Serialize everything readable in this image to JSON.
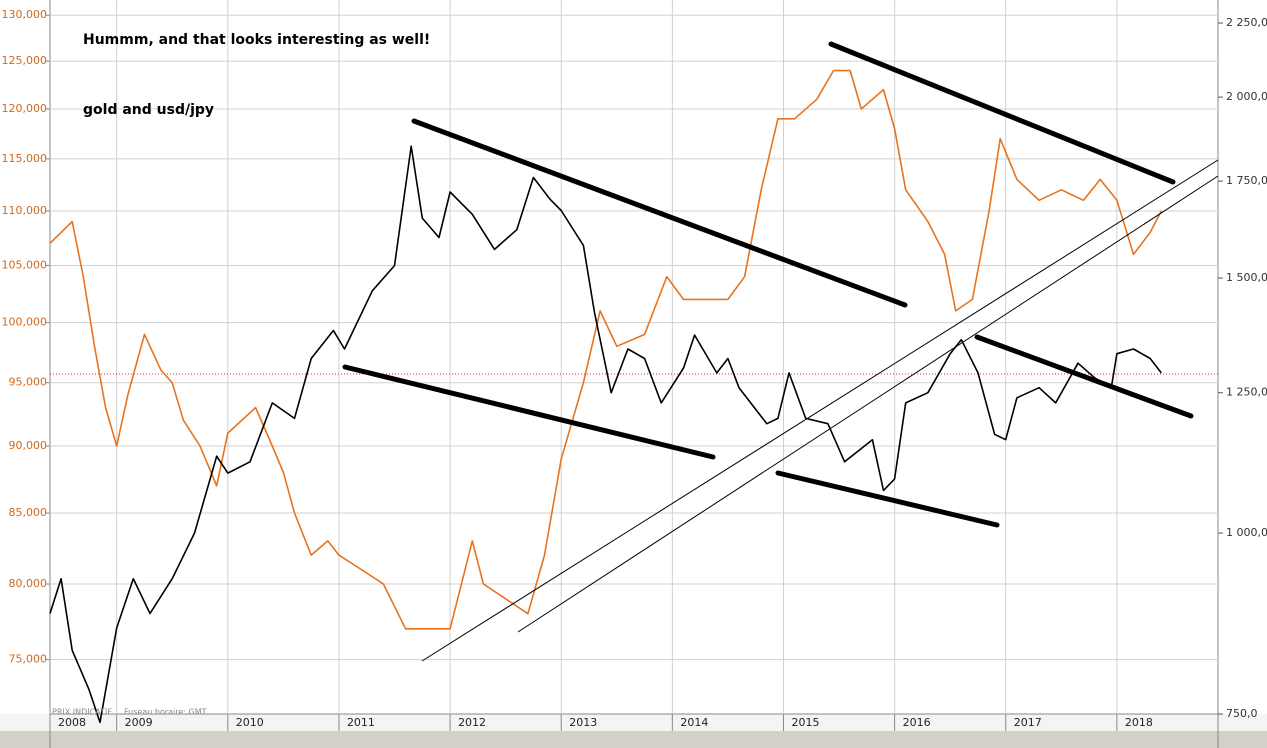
{
  "chart_data": {
    "type": "line",
    "title": "Hummm, and that looks interesting as well!",
    "subtitle": "gold and usd/jpy",
    "footer_labels": [
      "PRIX INDICATIF",
      "Fuseau horaire: GMT"
    ],
    "xlim": [
      2008.4,
      2018.91
    ],
    "xticks": [
      2008,
      2009,
      2010,
      2011,
      2012,
      2013,
      2014,
      2015,
      2016,
      2017,
      2018
    ],
    "ylim": [
      71.6,
      131.7
    ],
    "yticks": [
      {
        "value": 75,
        "label": "75,000"
      },
      {
        "value": 80,
        "label": "80,000"
      },
      {
        "value": 85,
        "label": "85,000"
      },
      {
        "value": 90,
        "label": "90,000"
      },
      {
        "value": 95,
        "label": "95,000"
      },
      {
        "value": 100,
        "label": "100,000"
      },
      {
        "value": 105,
        "label": "105,000"
      },
      {
        "value": 110,
        "label": "110,000"
      },
      {
        "value": 115,
        "label": "115,000"
      },
      {
        "value": 120,
        "label": "120,000"
      },
      {
        "value": 125,
        "label": "125,000"
      },
      {
        "value": 130,
        "label": "130,000"
      }
    ],
    "y2lim": [
      750,
      2334
    ],
    "y2ticks": [
      {
        "value": 750,
        "label": "750,0"
      },
      {
        "value": 1000,
        "label": "1 000,0"
      },
      {
        "value": 1250,
        "label": "1 250,0"
      },
      {
        "value": 1500,
        "label": "1 500,0"
      },
      {
        "value": 1750,
        "label": "1 750,0"
      },
      {
        "value": 2000,
        "label": "2 000,0"
      },
      {
        "value": 2250,
        "label": "2 250,0"
      }
    ],
    "log_scale": true,
    "grid": true,
    "series": [
      {
        "color": "#e8731e",
        "axis": "y",
        "x": [
          2008.4,
          2008.5,
          2008.6,
          2008.7,
          2008.8,
          2008.9,
          2009.0,
          2009.1,
          2009.25,
          2009.4,
          2009.5,
          2009.6,
          2009.75,
          2009.9,
          2010.0,
          2010.25,
          2010.4,
          2010.5,
          2010.6,
          2010.75,
          2010.9,
          2011.0,
          2011.2,
          2011.4,
          2011.6,
          2011.75,
          2011.9,
          2012.0,
          2012.2,
          2012.3,
          2012.5,
          2012.7,
          2012.85,
          2013.0,
          2013.2,
          2013.35,
          2013.5,
          2013.75,
          2013.95,
          2014.1,
          2014.3,
          2014.5,
          2014.65,
          2014.8,
          2014.95,
          2015.1,
          2015.3,
          2015.45,
          2015.6,
          2015.7,
          2015.9,
          2016.0,
          2016.1,
          2016.3,
          2016.45,
          2016.55,
          2016.7,
          2016.85,
          2016.95,
          2017.1,
          2017.3,
          2017.5,
          2017.7,
          2017.85,
          2018.0,
          2018.15,
          2018.3,
          2018.4
        ],
        "values": [
          107,
          108,
          109,
          104,
          98,
          93,
          90,
          94,
          99,
          96,
          95,
          92,
          90,
          87,
          91,
          93,
          90,
          88,
          85,
          82,
          83,
          82,
          81,
          80,
          77,
          77,
          77,
          77,
          83,
          80,
          79,
          78,
          82,
          89,
          95,
          101,
          98,
          99,
          104,
          102,
          102,
          102,
          104,
          112,
          119,
          119,
          121,
          124,
          124,
          120,
          122,
          118,
          112,
          109,
          106,
          101,
          102,
          110,
          117,
          113,
          111,
          112,
          111,
          113,
          111,
          106,
          108,
          110
        ]
      },
      {
        "color": "#000000",
        "axis": "y2",
        "x": [
          2008.4,
          2008.5,
          2008.6,
          2008.75,
          2008.85,
          2009.0,
          2009.15,
          2009.3,
          2009.5,
          2009.7,
          2009.9,
          2010.0,
          2010.2,
          2010.4,
          2010.6,
          2010.75,
          2010.95,
          2011.05,
          2011.3,
          2011.5,
          2011.65,
          2011.75,
          2011.9,
          2012.0,
          2012.2,
          2012.4,
          2012.6,
          2012.75,
          2012.9,
          2013.0,
          2013.2,
          2013.3,
          2013.45,
          2013.6,
          2013.75,
          2013.9,
          2014.1,
          2014.2,
          2014.4,
          2014.5,
          2014.6,
          2014.85,
          2014.95,
          2015.05,
          2015.2,
          2015.4,
          2015.55,
          2015.8,
          2015.9,
          2016.0,
          2016.1,
          2016.3,
          2016.5,
          2016.6,
          2016.75,
          2016.9,
          2017.0,
          2017.1,
          2017.3,
          2017.45,
          2017.65,
          2017.8,
          2017.95,
          2018.0,
          2018.15,
          2018.3,
          2018.4
        ],
        "values": [
          880,
          930,
          830,
          780,
          740,
          860,
          930,
          880,
          930,
          1000,
          1130,
          1100,
          1120,
          1230,
          1200,
          1320,
          1380,
          1340,
          1470,
          1530,
          1850,
          1650,
          1600,
          1720,
          1660,
          1570,
          1620,
          1760,
          1700,
          1670,
          1580,
          1420,
          1250,
          1340,
          1320,
          1230,
          1300,
          1370,
          1290,
          1320,
          1260,
          1190,
          1200,
          1290,
          1200,
          1190,
          1120,
          1160,
          1070,
          1090,
          1230,
          1250,
          1330,
          1360,
          1290,
          1170,
          1160,
          1240,
          1260,
          1230,
          1310,
          1280,
          1260,
          1330,
          1340,
          1320,
          1290
        ]
      }
    ]
  }
}
